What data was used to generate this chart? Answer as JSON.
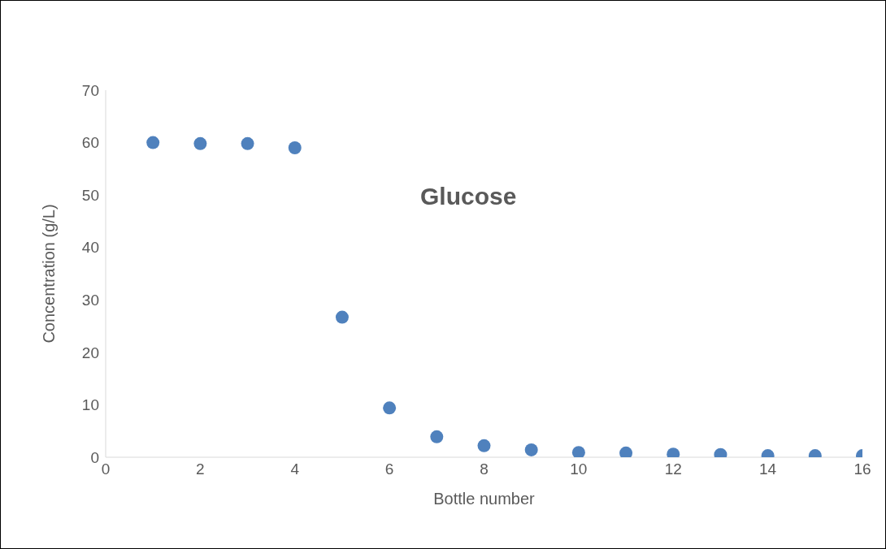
{
  "chart_data": {
    "type": "scatter",
    "xlabel": "Bottle number",
    "ylabel": "Concentration (g/L)",
    "annotations": [
      "Glucose"
    ],
    "x": [
      1,
      2,
      3,
      4,
      5,
      6,
      7,
      8,
      9,
      10,
      11,
      12,
      13,
      14,
      15,
      16
    ],
    "series": [
      {
        "color": "#4f81bd",
        "values": [
          60,
          59.8,
          59.8,
          59,
          26.7,
          9.4,
          3.9,
          2.2,
          1.4,
          0.9,
          0.8,
          0.6,
          0.5,
          0.3,
          0.3,
          0.3
        ]
      }
    ],
    "xlim": [
      0,
      16
    ],
    "xticks": [
      0,
      2,
      4,
      6,
      8,
      10,
      12,
      14,
      16
    ],
    "ylim": [
      0,
      70
    ],
    "yticks": [
      0,
      10,
      20,
      30,
      40,
      50,
      60,
      70
    ],
    "grid": false,
    "legend": false,
    "marker": "circle"
  }
}
